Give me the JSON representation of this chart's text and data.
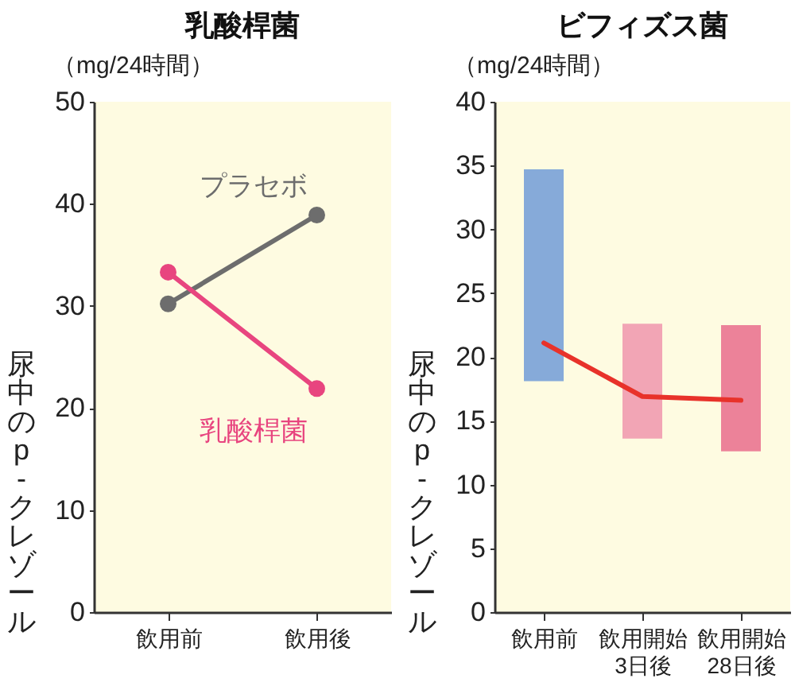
{
  "chart_data": [
    {
      "type": "line",
      "title": "乳酸桿菌",
      "subtitle": "（mg/24時間）",
      "ylabel": "尿中のp-クレゾール",
      "categories": [
        "飲用前",
        "飲用後"
      ],
      "series": [
        {
          "name": "プラセボ",
          "color": "#6d6d6d",
          "values": [
            30.2,
            38.9
          ]
        },
        {
          "name": "乳酸桿菌",
          "color": "#e8457f",
          "values": [
            33.3,
            21.9
          ]
        }
      ],
      "ylim": [
        0,
        50
      ],
      "yticks": [
        0,
        10,
        20,
        30,
        40,
        50
      ],
      "marker": "circle"
    },
    {
      "type": "bar",
      "title": "ビフィズス菌",
      "subtitle": "（mg/24時間）",
      "ylabel": "尿中のp-クレゾール",
      "categories": [
        "飲用前",
        "飲用開始\n3日後",
        "飲用開始\n28日後"
      ],
      "series": [
        {
          "type": "bar",
          "colors": [
            "#86aad9",
            "#f2a5b5",
            "#ec8299"
          ],
          "base": [
            18.1,
            13.6,
            12.6
          ],
          "values": [
            16.6,
            9.0,
            9.9
          ]
        },
        {
          "type": "line",
          "color": "#e8322a",
          "values": [
            21.1,
            16.9,
            16.6
          ]
        }
      ],
      "ylim": [
        0,
        40
      ],
      "yticks": [
        0,
        5,
        10,
        15,
        20,
        25,
        30,
        35,
        40
      ]
    }
  ]
}
